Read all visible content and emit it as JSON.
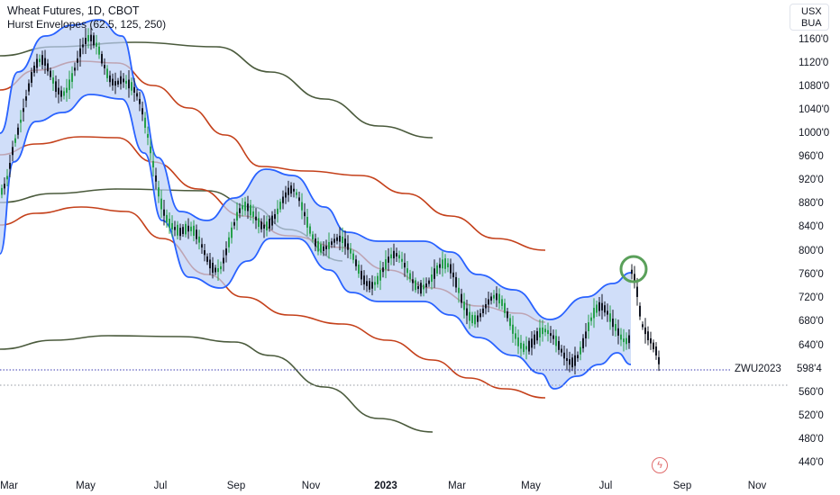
{
  "legend": {
    "title": "Wheat Futures, 1D, CBOT",
    "indicator": "Hurst Envelopes (62.5, 125, 250)"
  },
  "currency_box": {
    "line1": "USX",
    "line2": "BUA"
  },
  "price_axis": {
    "labels": [
      "1160'0",
      "1120'0",
      "1080'0",
      "1040'0",
      "1000'0",
      "960'0",
      "920'0",
      "880'0",
      "840'0",
      "800'0",
      "760'0",
      "720'0",
      "680'0",
      "640'0",
      "598'4",
      "560'0",
      "520'0",
      "480'0",
      "440'0"
    ]
  },
  "time_axis": {
    "labels": [
      "Mar",
      "May",
      "Jul",
      "Sep",
      "Nov",
      "2023",
      "Mar",
      "May",
      "Jul",
      "Sep",
      "Nov"
    ]
  },
  "last_price": {
    "contract": "ZWU2023",
    "value": "598'4"
  },
  "colors": {
    "band_fill": "#bcd0f7",
    "band_stroke": "#2962ff",
    "mid_envelope": "#c4401a",
    "outer_envelope": "#4a5a3c",
    "candle_up": "#26a04b",
    "candle_down": "#131722",
    "highlight_circle": "#5aa05a",
    "price_line": "#3a3ab0"
  },
  "icons": {
    "flash": "flash-icon"
  }
}
